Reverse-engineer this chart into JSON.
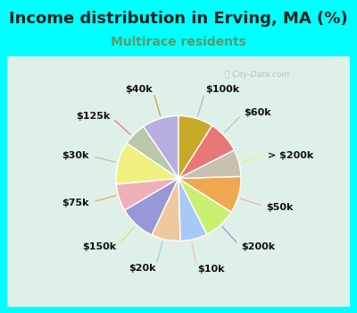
{
  "title": "Income distribution in Erving, MA (%)",
  "subtitle": "Multirace residents",
  "watermark": "ⓘ City-Data.com",
  "background_color": "#00ffff",
  "chart_bg_color": "#dff0e8",
  "labels": [
    "$100k",
    "$60k",
    "> $200k",
    "$50k",
    "$200k",
    "$10k",
    "$20k",
    "$150k",
    "$75k",
    "$30k",
    "$125k",
    "$40k"
  ],
  "sizes": [
    9.5,
    6.0,
    11.0,
    7.0,
    9.5,
    7.5,
    7.0,
    8.5,
    9.5,
    7.0,
    8.5,
    9.0
  ],
  "colors": [
    "#b8aee0",
    "#b8c8a8",
    "#f0f080",
    "#f0b0b8",
    "#9898d8",
    "#f0c8a0",
    "#a8c8f8",
    "#c8f070",
    "#f0a850",
    "#c8c0b0",
    "#e87878",
    "#c8a828"
  ],
  "title_fontsize": 13,
  "subtitle_fontsize": 10,
  "label_fontsize": 8,
  "startangle": 90,
  "figsize": [
    4.0,
    3.5
  ],
  "dpi": 100
}
